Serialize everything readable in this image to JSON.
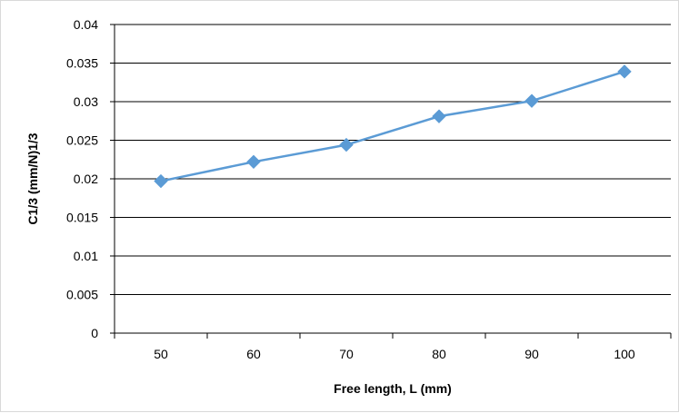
{
  "chart_data": {
    "type": "line",
    "title": "",
    "xlabel": "Free length, L (mm)",
    "ylabel": "C1/3 (mm/N)1/3",
    "categories": [
      "50",
      "60",
      "70",
      "80",
      "90",
      "100"
    ],
    "series": [
      {
        "values": [
          0.0197,
          0.0222,
          0.0244,
          0.0281,
          0.0301,
          0.0339
        ],
        "color": "#5b9bd5",
        "marker": "diamond"
      }
    ],
    "ylim": [
      0,
      0.04
    ],
    "yticks": [
      "0",
      "0.005",
      "0.01",
      "0.015",
      "0.02",
      "0.025",
      "0.03",
      "0.035",
      "0.04"
    ],
    "grid": true,
    "legend": "none"
  }
}
